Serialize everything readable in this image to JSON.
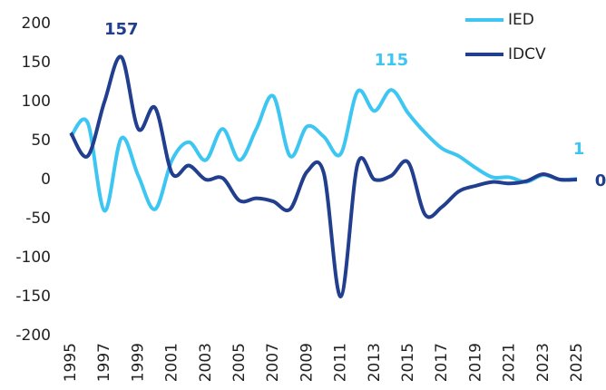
{
  "chart_data": {
    "type": "line",
    "x": [
      1995,
      1996,
      1997,
      1998,
      1999,
      2000,
      2001,
      2002,
      2003,
      2004,
      2005,
      2006,
      2007,
      2008,
      2009,
      2010,
      2011,
      2012,
      2013,
      2014,
      2015,
      2016,
      2017,
      2018,
      2019,
      2020,
      2021,
      2022,
      2023,
      2024,
      2025
    ],
    "series": [
      {
        "name": "IED",
        "color": "#3ec6f2",
        "values": [
          55,
          73,
          -40,
          53,
          5,
          -38,
          25,
          48,
          25,
          65,
          25,
          65,
          107,
          30,
          68,
          55,
          33,
          113,
          88,
          115,
          85,
          60,
          40,
          30,
          15,
          3,
          3,
          -3,
          6,
          0,
          1
        ],
        "value_labels": [
          null,
          null,
          null,
          null,
          null,
          null,
          null,
          null,
          null,
          null,
          null,
          null,
          null,
          null,
          null,
          null,
          null,
          null,
          null,
          "115",
          null,
          null,
          null,
          null,
          null,
          null,
          null,
          null,
          null,
          null,
          "1"
        ]
      },
      {
        "name": "IDCV",
        "color": "#223f8f",
        "values": [
          60,
          30,
          100,
          157,
          65,
          92,
          8,
          18,
          0,
          2,
          -27,
          -24,
          -28,
          -38,
          10,
          8,
          -150,
          20,
          0,
          5,
          22,
          -45,
          -35,
          -15,
          -8,
          -3,
          -5,
          -2,
          7,
          0,
          0
        ],
        "value_labels": [
          null,
          null,
          null,
          "157",
          null,
          null,
          null,
          null,
          null,
          null,
          null,
          null,
          null,
          null,
          null,
          null,
          null,
          null,
          null,
          null,
          null,
          null,
          null,
          null,
          null,
          null,
          null,
          null,
          null,
          null,
          "0"
        ]
      }
    ],
    "xlim": [
      1995,
      2025
    ],
    "xticks": [
      1995,
      1997,
      1999,
      2001,
      2003,
      2005,
      2007,
      2009,
      2011,
      2013,
      2015,
      2017,
      2019,
      2021,
      2023,
      2025
    ],
    "ylim": [
      -200,
      200
    ],
    "yticks": [
      -200,
      -150,
      -100,
      -50,
      0,
      50,
      100,
      150,
      200
    ],
    "grid": false,
    "legend": "top-right"
  }
}
